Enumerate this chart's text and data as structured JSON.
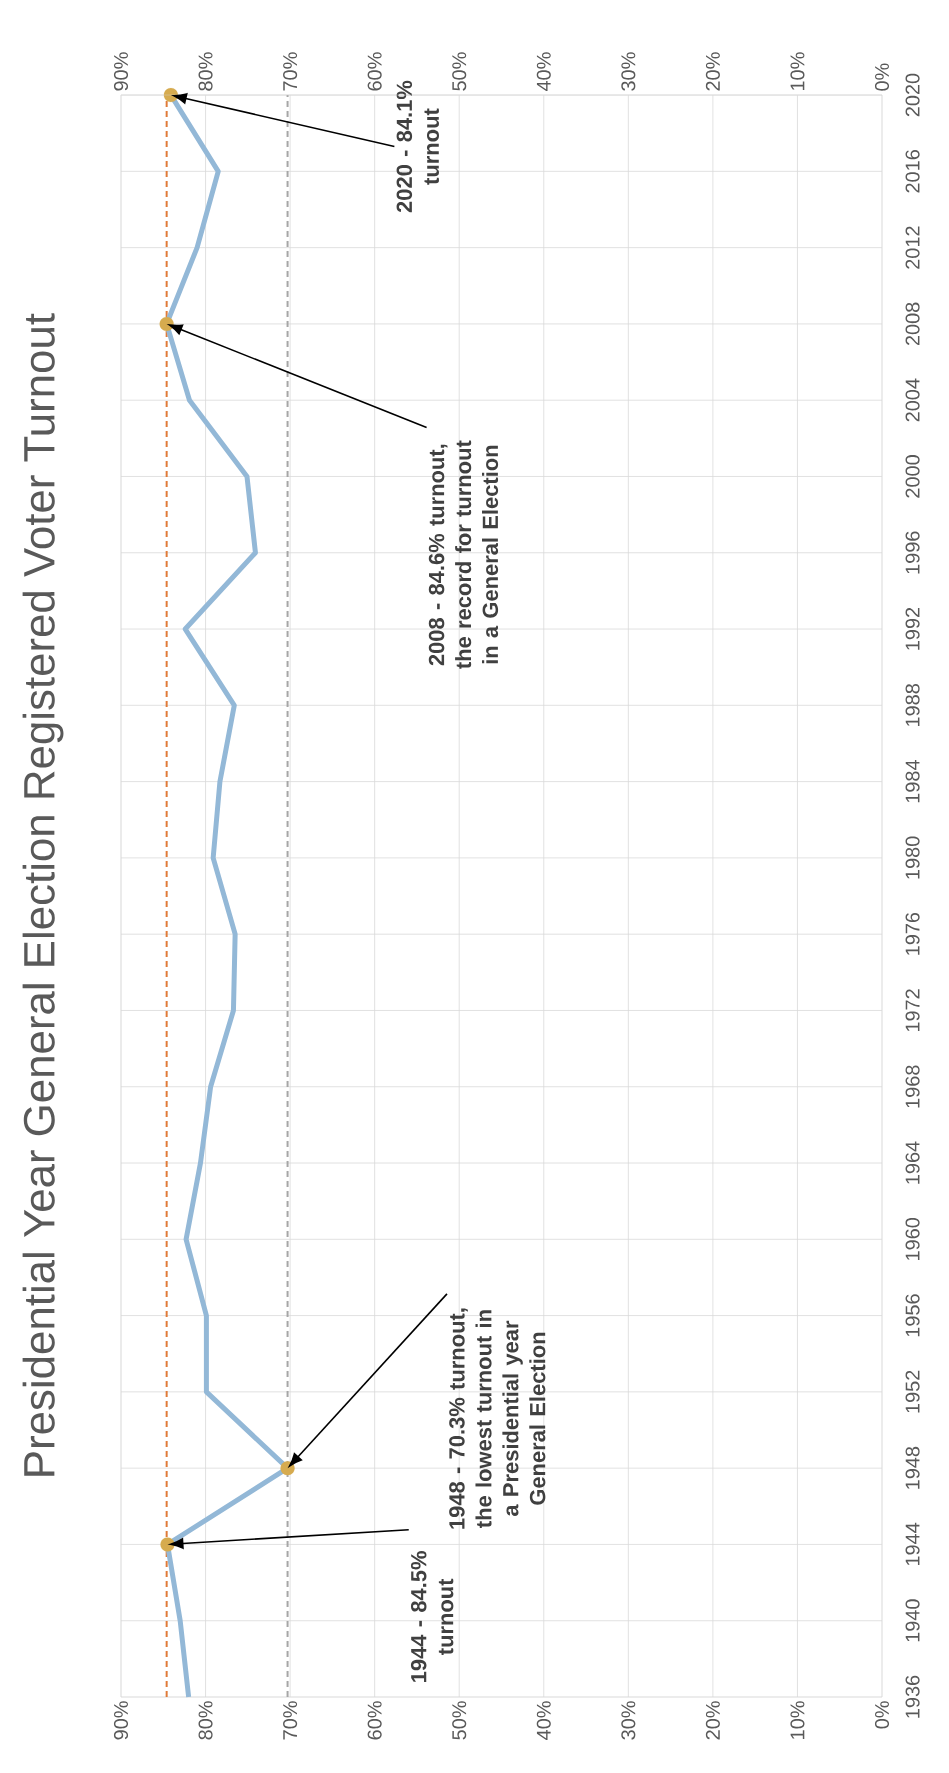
{
  "chart_data": {
    "type": "line",
    "title": "Presidential Year General Election Registered Voter Turnout",
    "series": [
      {
        "color": "#93b8d7",
        "marker": "none",
        "x": [
          82.0,
          83.0,
          84.5,
          70.3,
          79.9,
          79.9,
          82.3,
          80.6,
          79.4,
          76.7,
          76.5,
          79.1,
          78.3,
          76.6,
          82.4,
          74.1,
          75.1,
          81.9,
          84.6,
          81.0,
          78.5,
          84.1
        ],
        "values": [
          1936,
          1940,
          1944,
          1948,
          1952,
          1956,
          1960,
          1964,
          1968,
          1972,
          1976,
          1980,
          1984,
          1988,
          1992,
          1996,
          2000,
          2004,
          2008,
          2012,
          2016,
          2020
        ]
      },
      {
        "type": "scatter",
        "color": "#d6ab4f",
        "marker": "circle",
        "x": [
          84.5,
          70.3,
          84.6,
          84.1
        ],
        "values": [
          1944,
          1948,
          2008,
          2020
        ]
      }
    ],
    "ylim": [
      1936,
      2020
    ],
    "yticks": [
      1936,
      1940,
      1944,
      1948,
      1952,
      1956,
      1960,
      1964,
      1968,
      1972,
      1976,
      1980,
      1984,
      1988,
      1992,
      1996,
      2000,
      2004,
      2008,
      2012,
      2016,
      2020
    ],
    "xlim": [
      90,
      0
    ],
    "xticks": [
      {
        "value": 0,
        "label": "0%"
      },
      {
        "value": 10,
        "label": "10%"
      },
      {
        "value": 20,
        "label": "20%"
      },
      {
        "value": 30,
        "label": "30%"
      },
      {
        "value": 40,
        "label": "40%"
      },
      {
        "value": 50,
        "label": "50%"
      },
      {
        "value": 60,
        "label": "60%"
      },
      {
        "value": 70,
        "label": "70%"
      },
      {
        "value": 80,
        "label": "80%"
      },
      {
        "value": 90,
        "label": "90%"
      }
    ],
    "x2lim": [
      90,
      0
    ],
    "x2ticks": [
      {
        "value": 0,
        "label": "0%"
      },
      {
        "value": 10,
        "label": "10%"
      },
      {
        "value": 20,
        "label": "20%"
      },
      {
        "value": 30,
        "label": "30%"
      },
      {
        "value": 40,
        "label": "40%"
      },
      {
        "value": 50,
        "label": "50%"
      },
      {
        "value": 60,
        "label": "60%"
      },
      {
        "value": 70,
        "label": "70%"
      },
      {
        "value": 80,
        "label": "80%"
      },
      {
        "value": 90,
        "label": "90%"
      }
    ],
    "ref_lines": [
      {
        "axis": "x",
        "value": 84.6,
        "color": "#e07b39",
        "line_style": "dashed"
      },
      {
        "axis": "x",
        "value": 70.3,
        "color": "#a6a6a6",
        "line_style": "dashed"
      }
    ],
    "annotations": [
      "2020 - 84.1% turnout",
      "2008 - 84.6% turnout, the record for turnout in a General Election",
      "1948 - 70.3% turnout, the lowest turnout in a Presidential year General Election",
      "1944 - 84.5% turnout"
    ],
    "grid": true
  }
}
